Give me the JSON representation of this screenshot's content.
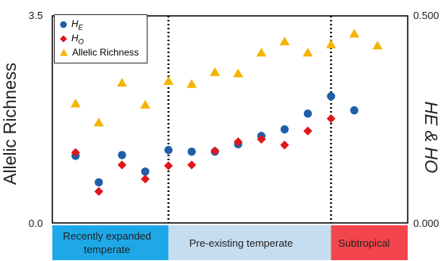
{
  "chart_data": {
    "type": "scatter",
    "ylabel_left": "Allelic Richness",
    "ylabel_right": "HE & HO",
    "left_axis": {
      "ylim": [
        0.0,
        3.5
      ],
      "ticks": [
        "3.5",
        "0.0"
      ]
    },
    "right_axis": {
      "ylim": [
        0.0,
        0.5
      ],
      "ticks": [
        "0.500",
        "0.000"
      ]
    },
    "legend": {
      "position": "top-left",
      "entries": [
        {
          "label": "H",
          "sub": "E",
          "marker": "circle",
          "color": "#1F5FA8"
        },
        {
          "label": "H",
          "sub": "O",
          "marker": "diamond",
          "color": "#E0161B"
        },
        {
          "label": "Allelic Richness",
          "sub": "",
          "marker": "triangle",
          "color": "#F5B400"
        }
      ]
    },
    "regions": [
      {
        "label": "Recently expanded temperate",
        "color": "#1EA8E8",
        "from": 1,
        "to": 5
      },
      {
        "label": "Pre-existing temperate",
        "color": "#C5DDF0",
        "from": 5,
        "to": 12
      },
      {
        "label": "Subtropical",
        "color": "#F2454C",
        "from": 12,
        "to": 15
      }
    ],
    "x": [
      1,
      2,
      3,
      4,
      5,
      6,
      7,
      8,
      9,
      10,
      11,
      12,
      13,
      14
    ],
    "series": [
      {
        "name": "Allelic Richness",
        "axis": "left",
        "marker": "triangle",
        "color": "#F5B400",
        "values": [
          2.02,
          1.7,
          2.37,
          2.0,
          2.4,
          2.35,
          2.55,
          2.53,
          2.88,
          3.07,
          2.88,
          3.02,
          3.2,
          3.0
        ]
      },
      {
        "name": "HE",
        "axis": "right",
        "marker": "circle",
        "color": "#1F5FA8",
        "values": [
          0.162,
          0.098,
          0.164,
          0.124,
          0.176,
          0.172,
          0.172,
          0.19,
          0.21,
          0.226,
          0.264,
          0.306,
          0.272,
          null
        ]
      },
      {
        "name": "HO",
        "axis": "right",
        "marker": "diamond",
        "color": "#E0161B",
        "values": [
          0.17,
          0.076,
          0.14,
          0.106,
          0.138,
          0.14,
          0.174,
          0.196,
          0.202,
          0.188,
          0.222,
          0.252,
          null,
          null
        ]
      }
    ]
  }
}
